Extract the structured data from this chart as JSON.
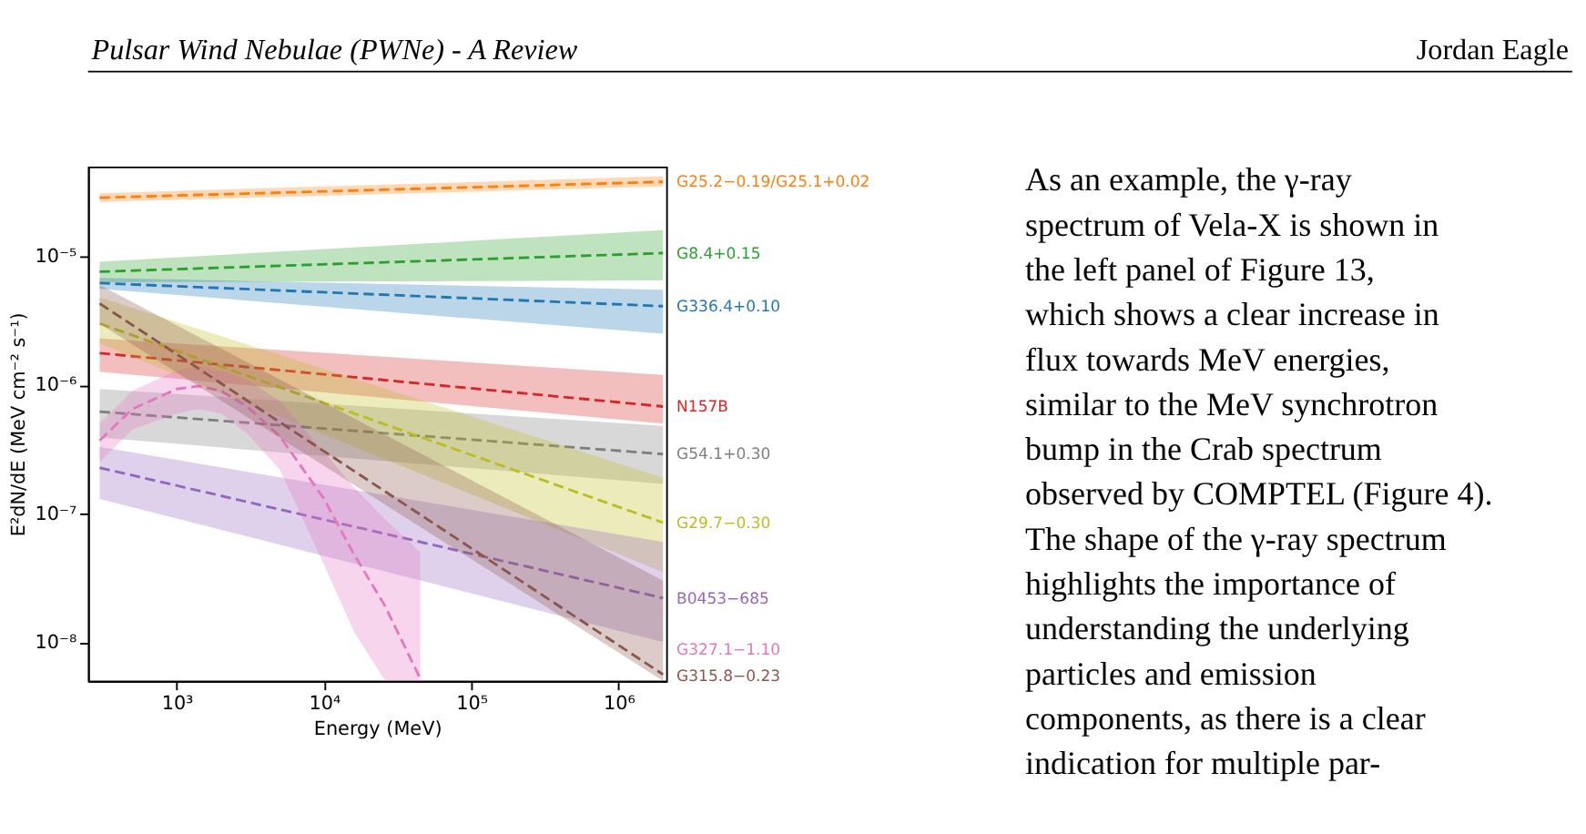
{
  "chart_data": {
    "type": "line",
    "xlabel": "Energy (MeV)",
    "ylabel": "E²dN/dE (MeV cm⁻² s⁻¹)",
    "log": "xy",
    "xlim": [
      250,
      2100000
    ],
    "ylim": [
      5e-09,
      5e-05
    ],
    "xticks": [
      {
        "value": 1000,
        "label": "10³"
      },
      {
        "value": 10000,
        "label": "10⁴"
      },
      {
        "value": 100000,
        "label": "10⁵"
      },
      {
        "value": 1000000,
        "label": "10⁶"
      }
    ],
    "yticks": [
      {
        "value": 1e-08,
        "label": "10⁻⁸"
      },
      {
        "value": 1e-07,
        "label": "10⁻⁷"
      },
      {
        "value": 1e-06,
        "label": "10⁻⁶"
      },
      {
        "value": 1e-05,
        "label": "10⁻⁵"
      }
    ],
    "grid": false,
    "marker": "none",
    "line_style": "dashed",
    "series": [
      {
        "name": "G25.2−0.19/G25.1+0.02",
        "color": "#ff7f0e",
        "x": [
          300,
          2000000
        ],
        "values": [
          2.86e-05,
          3.8e-05
        ],
        "lower": [
          2.65e-05,
          3.5e-05
        ],
        "upper": [
          3.1e-05,
          4.2e-05
        ]
      },
      {
        "name": "G8.4+0.15",
        "color": "#2ca02c",
        "x": [
          300,
          2000000
        ],
        "values": [
          7.6e-06,
          1.06e-05
        ],
        "lower": [
          6.3e-06,
          6.5e-06
        ],
        "upper": [
          9.1e-06,
          1.6e-05
        ]
      },
      {
        "name": "G336.4+0.10",
        "color": "#1f77b4",
        "x": [
          300,
          2000000
        ],
        "values": [
          6.2e-06,
          4.1e-06
        ],
        "lower": [
          5.6e-06,
          2.5e-06
        ],
        "upper": [
          6.8e-06,
          5.5e-06
        ]
      },
      {
        "name": "N157B",
        "color": "#d62728",
        "x": [
          300,
          2000000
        ],
        "values": [
          1.77e-06,
          6.8e-07
        ],
        "lower": [
          1.27e-06,
          5e-07
        ],
        "upper": [
          2.3e-06,
          1.2e-06
        ]
      },
      {
        "name": "G54.1+0.30",
        "color": "#7f7f7f",
        "x": [
          300,
          2000000
        ],
        "values": [
          6.2e-07,
          2.9e-07
        ],
        "lower": [
          3.9e-07,
          1.7e-07
        ],
        "upper": [
          9.3e-07,
          4.8e-07
        ]
      },
      {
        "name": "G29.7−0.30",
        "color": "#bcbd22",
        "x": [
          300,
          2000000
        ],
        "values": [
          3e-06,
          8.5e-08
        ],
        "lower": [
          2.1e-06,
          3.5e-08
        ],
        "upper": [
          4.8e-06,
          1.9e-07
        ]
      },
      {
        "name": "B0453−685",
        "color": "#9467bd",
        "x": [
          300,
          2000000
        ],
        "values": [
          2.27e-07,
          2.2e-08
        ],
        "lower": [
          1.3e-07,
          1e-08
        ],
        "upper": [
          3.3e-07,
          6e-08
        ]
      },
      {
        "name": "G327.1−1.10",
        "color": "#e377c2",
        "x": [
          300,
          500,
          1000,
          1400,
          2000,
          3000,
          5000,
          10000,
          16000,
          26000,
          45000
        ],
        "values": [
          3.7e-07,
          6.5e-07,
          9.3e-07,
          9.8e-07,
          9e-07,
          6.8e-07,
          4e-07,
          1.3e-07,
          4.8e-08,
          1.9e-08,
          5.2e-09
        ],
        "lower": [
          2.5e-07,
          4.5e-07,
          6e-07,
          6.5e-07,
          6e-07,
          4.2e-07,
          2.2e-07,
          4e-08,
          1.2e-08,
          5e-09,
          5e-09
        ],
        "upper": [
          5e-07,
          9e-07,
          1.3e-06,
          1.4e-06,
          1.3e-06,
          1.1e-06,
          7.5e-07,
          3e-07,
          1.6e-07,
          9e-08,
          5e-08
        ]
      },
      {
        "name": "G315.8−0.23",
        "color": "#8c564b",
        "x": [
          300,
          2000000
        ],
        "values": [
          4.3e-06,
          5.6e-09
        ],
        "lower": [
          3e-06,
          5e-09
        ],
        "upper": [
          6e-06,
          3e-08
        ]
      }
    ],
    "annotations": [
      "Pulsar Wind Nebulae (PWNe) - A Review",
      "Jordan Eagle",
      "As an example, the γ-ray spectrum of Vela-X is shown in the left panel of Figure 13, which shows a clear increase in flux towards MeV energies, similar to the MeV synchrotron bump in the Crab spectrum observed by COMPTEL (Figure 4). The shape of the γ-ray spectrum highlights the importance of understanding the underlying particles and emission components, as there is a clear indication for multiple par-"
    ]
  }
}
